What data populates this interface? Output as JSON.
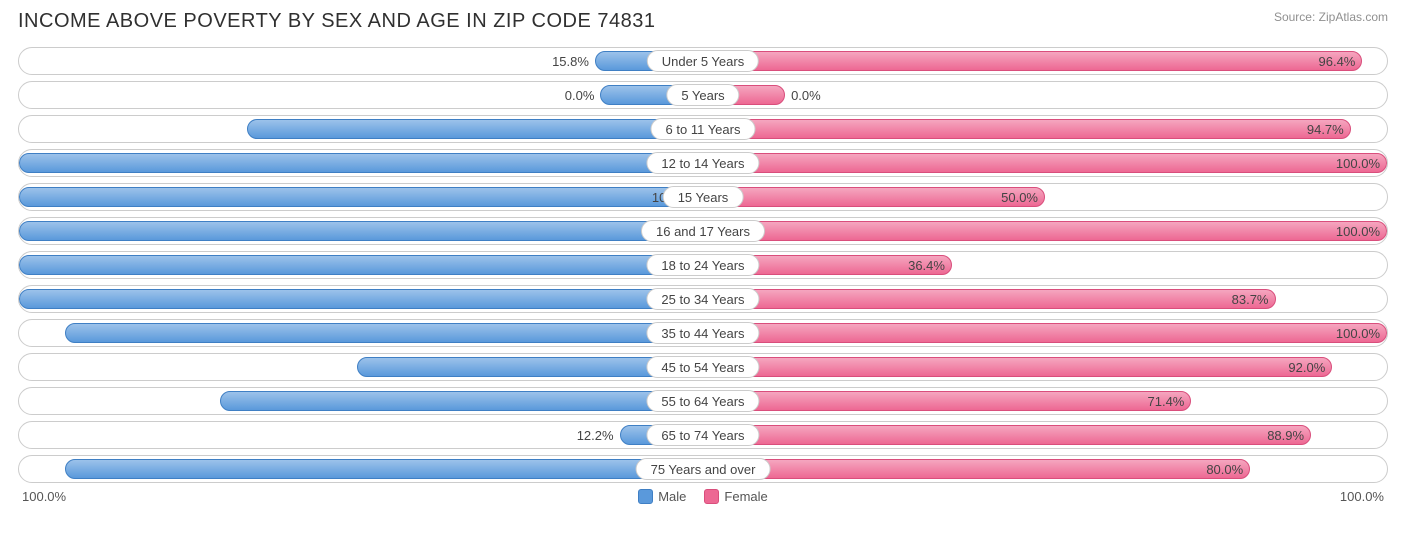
{
  "title": "INCOME ABOVE POVERTY BY SEX AND AGE IN ZIP CODE 74831",
  "source": "Source: ZipAtlas.com",
  "chart": {
    "type": "diverging-bar",
    "axis_min_label": "100.0%",
    "axis_max_label": "100.0%",
    "male": {
      "label": "Male",
      "fill_light": "#9cc2ea",
      "fill_dark": "#5a99db",
      "border": "#3f7fc4"
    },
    "female": {
      "label": "Female",
      "fill_light": "#f5a6bf",
      "fill_dark": "#ed6893",
      "border": "#d94e7c"
    },
    "row_border": "#cccccc",
    "background": "#ffffff",
    "label_fontsize": 13,
    "title_fontsize": 20,
    "categories": [
      {
        "label": "Under 5 Years",
        "male": 15.8,
        "female": 96.4
      },
      {
        "label": "5 Years",
        "male": 0.0,
        "female": 0.0,
        "male_stub": 15,
        "female_stub": 12
      },
      {
        "label": "6 to 11 Years",
        "male": 66.7,
        "female": 94.7
      },
      {
        "label": "12 to 14 Years",
        "male": 100.0,
        "female": 100.0
      },
      {
        "label": "15 Years",
        "male": 100.0,
        "female": 50.0
      },
      {
        "label": "16 and 17 Years",
        "male": 100.0,
        "female": 100.0
      },
      {
        "label": "18 to 24 Years",
        "male": 100.0,
        "female": 36.4
      },
      {
        "label": "25 to 34 Years",
        "male": 100.0,
        "female": 83.7
      },
      {
        "label": "35 to 44 Years",
        "male": 93.3,
        "female": 100.0
      },
      {
        "label": "45 to 54 Years",
        "male": 50.6,
        "female": 92.0
      },
      {
        "label": "55 to 64 Years",
        "male": 70.6,
        "female": 71.4
      },
      {
        "label": "65 to 74 Years",
        "male": 12.2,
        "female": 88.9
      },
      {
        "label": "75 Years and over",
        "male": 93.3,
        "female": 80.0
      }
    ]
  }
}
